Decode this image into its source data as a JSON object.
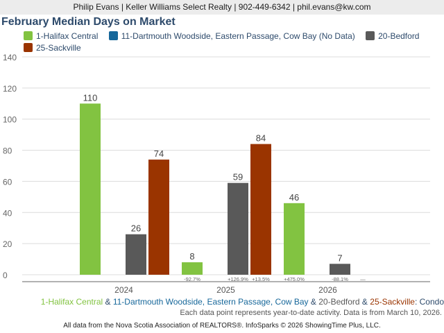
{
  "header": {
    "contact": "Philip Evans | Keller Williams Select Realty | 902-449-6342 | phil.evans@kw.com"
  },
  "footer": {
    "area_parts": [
      {
        "text": "1-Halifax Central",
        "color": "#82c341"
      },
      {
        "text": " & ",
        "color": "#2d4a6b"
      },
      {
        "text": "11-Dartmouth Woodside, Eastern Passage, Cow Bay",
        "color": "#16679a"
      },
      {
        "text": " & ",
        "color": "#2d4a6b"
      },
      {
        "text": "20-Bedford",
        "color": "#595959"
      },
      {
        "text": " & ",
        "color": "#2d4a6b"
      },
      {
        "text": "25-Sackville",
        "color": "#9a3400"
      },
      {
        "text": ": Condo",
        "color": "#2d4a6b"
      }
    ],
    "note": "Each data point represents year-to-date activity. Data is from March 10, 2026.",
    "source": "All data from the Nova Scotia Association of REALTORS®. InfoSparks © 2026 ShowingTime Plus, LLC."
  },
  "chart_data": {
    "type": "bar",
    "title": "February Median Days on Market",
    "categories": [
      "2024",
      "2025",
      "2026"
    ],
    "ylim": [
      0,
      140
    ],
    "yticks": [
      0,
      20,
      40,
      60,
      80,
      100,
      120,
      140
    ],
    "grid": true,
    "legend_position": "top-left",
    "series": [
      {
        "name": "1-Halifax Central",
        "legend_label": "1-Halifax Central",
        "color": "#82c341",
        "values": [
          110,
          8,
          46
        ],
        "changes": [
          "",
          "-92.7%",
          "+475.0%"
        ]
      },
      {
        "name": "11-Dartmouth Woodside, Eastern Passage, Cow Bay",
        "legend_label": "11-Dartmouth Woodside, Eastern Passage, Cow Bay (No Data)",
        "color": "#16679a",
        "values": [
          null,
          null,
          null
        ],
        "changes": [
          "",
          "",
          ""
        ]
      },
      {
        "name": "20-Bedford",
        "legend_label": "20-Bedford",
        "color": "#595959",
        "values": [
          26,
          59,
          7
        ],
        "changes": [
          "",
          "+126.9%",
          "-88.1%"
        ]
      },
      {
        "name": "25-Sackville",
        "legend_label": "25-Sackville",
        "color": "#9a3400",
        "values": [
          74,
          84,
          null
        ],
        "changes": [
          "",
          "+13.5%",
          "—"
        ]
      }
    ]
  }
}
